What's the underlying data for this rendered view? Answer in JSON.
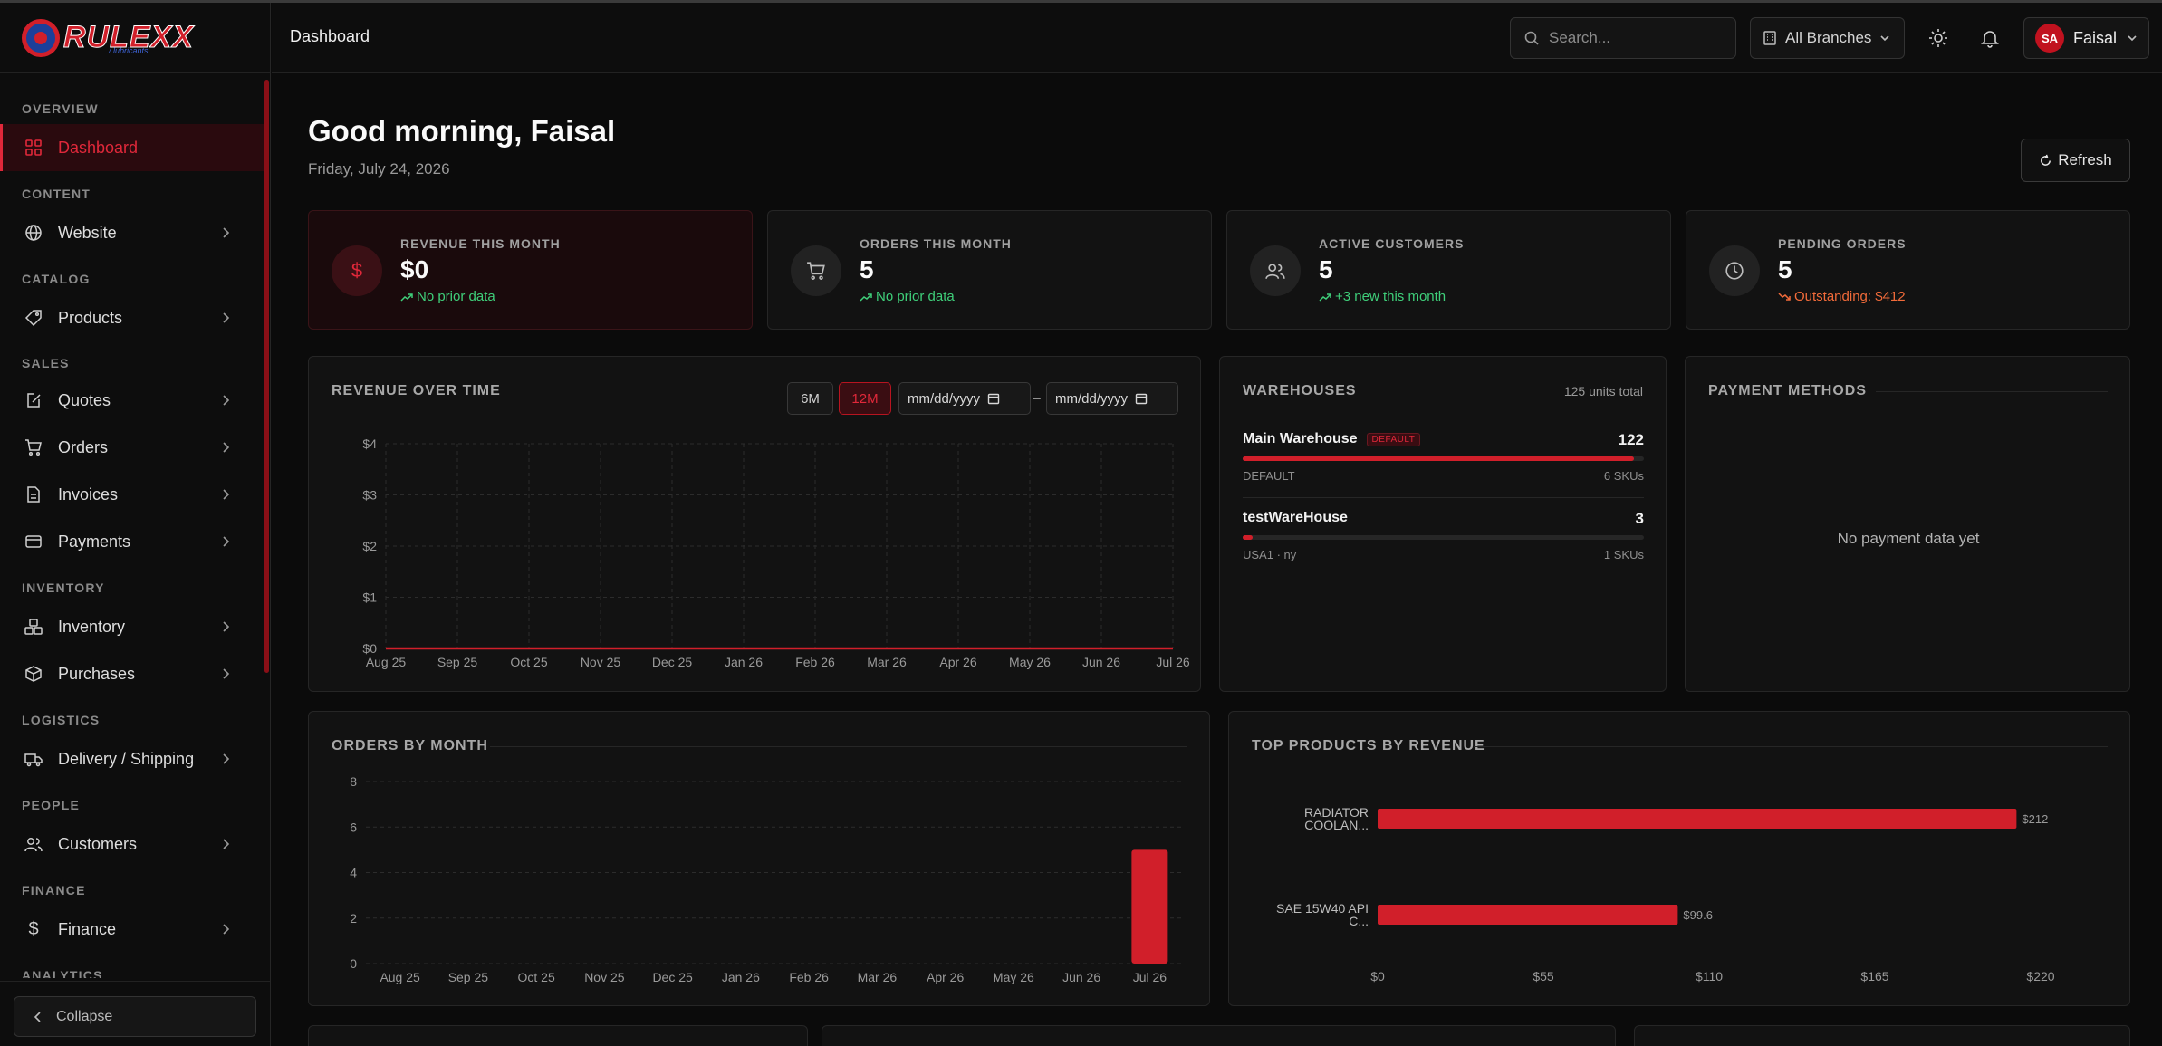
{
  "brand": {
    "name": "RULEXX",
    "tagline": "/ lubricants"
  },
  "header": {
    "title": "Dashboard",
    "search_placeholder": "Search...",
    "branch": "All Branches",
    "user_initials": "SA",
    "user_name": "Faisal"
  },
  "sidebar": {
    "sections": {
      "overview": "OVERVIEW",
      "content": "CONTENT",
      "catalog": "CATALOG",
      "sales": "SALES",
      "inventory": "INVENTORY",
      "logistics": "LOGISTICS",
      "people": "PEOPLE",
      "finance": "FINANCE",
      "analytics": "ANALYTICS"
    },
    "items": {
      "dashboard": "Dashboard",
      "website": "Website",
      "products": "Products",
      "quotes": "Quotes",
      "orders": "Orders",
      "invoices": "Invoices",
      "payments": "Payments",
      "inventory": "Inventory",
      "purchases": "Purchases",
      "delivery": "Delivery / Shipping",
      "customers": "Customers",
      "finance": "Finance"
    },
    "collapse_label": "Collapse"
  },
  "main": {
    "greeting": "Good morning, Faisal",
    "date": "Friday, July 24, 2026",
    "refresh_label": "Refresh"
  },
  "kpis": [
    {
      "label": "REVENUE THIS MONTH",
      "value": "$0",
      "sub": "No prior data"
    },
    {
      "label": "ORDERS THIS MONTH",
      "value": "5",
      "sub": "No prior data"
    },
    {
      "label": "ACTIVE CUSTOMERS",
      "value": "5",
      "sub": "+3 new this month"
    },
    {
      "label": "PENDING ORDERS",
      "value": "5",
      "sub": "Outstanding: $412"
    }
  ],
  "revenue_card": {
    "title": "REVENUE OVER TIME",
    "range_6m": "6M",
    "range_12m": "12M",
    "date_from": "mm/dd/yyyy",
    "date_sep": "–",
    "date_to": "mm/dd/yyyy"
  },
  "warehouses": {
    "title": "WAREHOUSES",
    "total": "125 units total",
    "rows": [
      {
        "name": "Main Warehouse",
        "badge": "DEFAULT",
        "qty": "122",
        "meta": "DEFAULT",
        "skus": "6 SKUs",
        "share": 0.976
      },
      {
        "name": "testWareHouse",
        "qty": "3",
        "meta": "USA1 · ny",
        "skus": "1 SKUs",
        "share": 0.024
      }
    ]
  },
  "payment_methods": {
    "title": "PAYMENT METHODS",
    "empty": "No payment data yet"
  },
  "orders_card": {
    "title": "ORDERS BY MONTH"
  },
  "top_products_card": {
    "title": "TOP PRODUCTS BY REVENUE"
  },
  "colors": {
    "accent": "#d11f2a",
    "positive": "#3fcf7a",
    "negative": "#f26b3a"
  },
  "chart_data": [
    {
      "type": "line",
      "x": [
        "Aug 25",
        "Sep 25",
        "Oct 25",
        "Nov 25",
        "Dec 25",
        "Jan 26",
        "Feb 26",
        "Mar 26",
        "Apr 26",
        "May 26",
        "Jun 26",
        "Jul 26"
      ],
      "series": [
        {
          "values": [
            0,
            0,
            0,
            0,
            0,
            0,
            0,
            0,
            0,
            0,
            0,
            0
          ]
        }
      ],
      "yticks": [
        "$0",
        "$1",
        "$2",
        "$3",
        "$4"
      ],
      "ylim": [
        0,
        4
      ],
      "grid": true
    },
    {
      "type": "bar",
      "categories": [
        "Aug 25",
        "Sep 25",
        "Oct 25",
        "Nov 25",
        "Dec 25",
        "Jan 26",
        "Feb 26",
        "Mar 26",
        "Apr 26",
        "May 26",
        "Jun 26",
        "Jul 26"
      ],
      "values": [
        0,
        0,
        0,
        0,
        0,
        0,
        0,
        0,
        0,
        0,
        0,
        5
      ],
      "yticks": [
        "0",
        "2",
        "4",
        "6",
        "8"
      ],
      "ylim": [
        0,
        8
      ],
      "grid": true
    },
    {
      "type": "bar",
      "orientation": "horizontal",
      "categories": [
        [
          "RADIATOR",
          "COOLAN..."
        ],
        [
          "SAE 15W40 API",
          "C..."
        ]
      ],
      "values": [
        212,
        99.6
      ],
      "value_labels": [
        "$212",
        "$99.6"
      ],
      "xticks": [
        "$0",
        "$55",
        "$110",
        "$165",
        "$220"
      ],
      "xlim": [
        0,
        220
      ]
    }
  ]
}
